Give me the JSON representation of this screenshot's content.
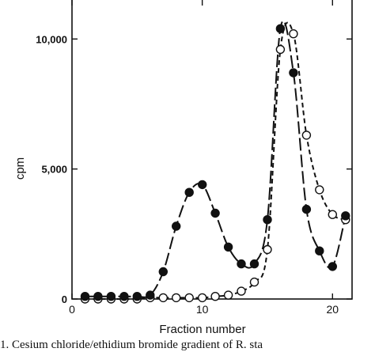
{
  "chart_data": {
    "type": "line",
    "xlabel": "Fraction number",
    "ylabel": "cpm",
    "xlim": [
      0,
      21.5
    ],
    "ylim": [
      0,
      11500
    ],
    "x_ticks": [
      {
        "value": 0,
        "label": "0"
      },
      {
        "value": 10,
        "label": "10"
      },
      {
        "value": 20,
        "label": "20"
      }
    ],
    "y_ticks": [
      {
        "value": 0,
        "label": "0"
      },
      {
        "value": 5000,
        "label": "5,000"
      },
      {
        "value": 10000,
        "label": "10,000"
      }
    ],
    "grid": false,
    "legend": "none",
    "series": [
      {
        "marker": "filled-circle",
        "line_style": "dashed-long",
        "color": "#111111",
        "x": [
          1,
          2,
          3,
          4,
          5,
          6,
          7,
          8,
          9,
          10,
          11,
          12,
          13,
          14,
          15,
          16,
          17,
          18,
          19,
          20,
          21
        ],
        "y": [
          100,
          100,
          100,
          100,
          100,
          150,
          1050,
          2800,
          4100,
          4400,
          3300,
          2000,
          1350,
          1350,
          3050,
          10400,
          8700,
          3450,
          1850,
          1250,
          3200
        ]
      },
      {
        "marker": "open-circle",
        "line_style": "dashed-short",
        "color": "#111111",
        "x": [
          1,
          2,
          3,
          4,
          5,
          6,
          7,
          8,
          9,
          10,
          11,
          12,
          13,
          14,
          15,
          16,
          17,
          18,
          19,
          20,
          21
        ],
        "y": [
          0,
          0,
          0,
          0,
          0,
          50,
          50,
          50,
          50,
          50,
          100,
          150,
          300,
          650,
          1900,
          9600,
          10200,
          6300,
          4200,
          3250,
          3050
        ]
      }
    ]
  },
  "caption": "1.   Cesium chloride/ethidium bromide gradient of R. sta"
}
